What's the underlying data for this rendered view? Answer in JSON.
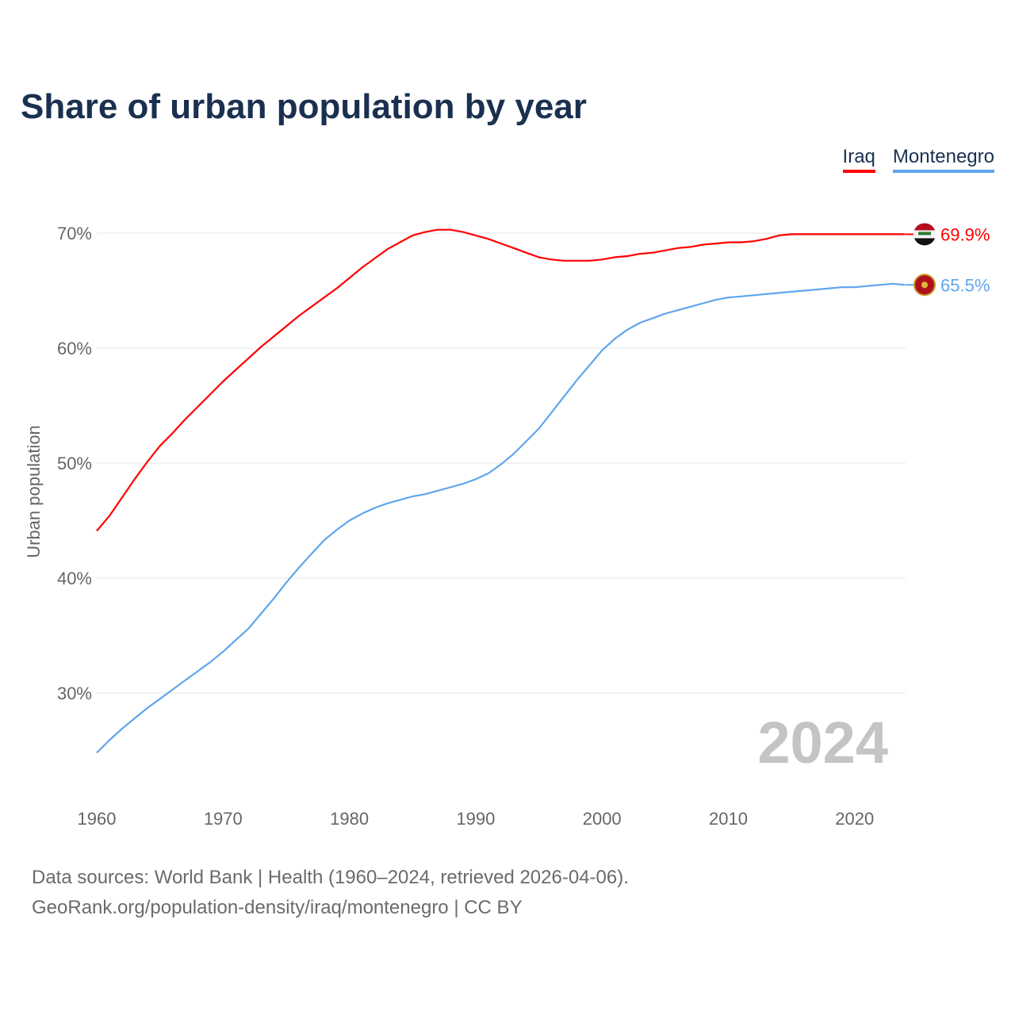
{
  "chart_data": {
    "type": "line",
    "title": "Share of urban population by year",
    "ylabel": "Urban population",
    "xlabel": "",
    "xlim": [
      1960,
      2024
    ],
    "ylim": [
      20,
      75
    ],
    "x_ticks": [
      1960,
      1970,
      1980,
      1990,
      2000,
      2010,
      2020
    ],
    "x_tick_labels": [
      "1960",
      "1970",
      "1980",
      "1990",
      "2000",
      "2010",
      "2020"
    ],
    "y_ticks": [
      30,
      40,
      50,
      60,
      70
    ],
    "y_tick_labels": [
      "30%",
      "40%",
      "50%",
      "60%",
      "70%"
    ],
    "grid": true,
    "legend_position": "top-right",
    "year_watermark": "2024",
    "x_start": 1960,
    "series": [
      {
        "name": "Iraq",
        "color": "#ff0000",
        "end_label": "69.9%",
        "flag": "iraq-flag",
        "values": [
          44.1,
          45.4,
          47.0,
          48.6,
          50.1,
          51.5,
          52.6,
          53.8,
          54.9,
          56.0,
          57.1,
          58.1,
          59.1,
          60.1,
          61.0,
          61.9,
          62.8,
          63.6,
          64.4,
          65.2,
          66.1,
          67.0,
          67.8,
          68.6,
          69.2,
          69.8,
          70.1,
          70.3,
          70.3,
          70.1,
          69.8,
          69.5,
          69.1,
          68.7,
          68.3,
          67.9,
          67.7,
          67.6,
          67.6,
          67.6,
          67.7,
          67.9,
          68.0,
          68.2,
          68.3,
          68.5,
          68.7,
          68.8,
          69.0,
          69.1,
          69.2,
          69.2,
          69.3,
          69.5,
          69.8,
          69.9,
          69.9,
          69.9,
          69.9,
          69.9,
          69.9,
          69.9,
          69.9,
          69.9,
          69.9
        ]
      },
      {
        "name": "Montenegro",
        "color": "#5ea6ec",
        "end_label": "65.5%",
        "flag": "montenegro-flag",
        "values": [
          24.8,
          25.9,
          26.9,
          27.8,
          28.7,
          29.5,
          30.3,
          31.1,
          31.9,
          32.7,
          33.6,
          34.6,
          35.6,
          36.9,
          38.2,
          39.6,
          40.9,
          42.1,
          43.3,
          44.2,
          45.0,
          45.6,
          46.1,
          46.5,
          46.8,
          47.1,
          47.3,
          47.6,
          47.9,
          48.2,
          48.6,
          49.1,
          49.9,
          50.8,
          51.9,
          53.0,
          54.4,
          55.8,
          57.2,
          58.5,
          59.8,
          60.8,
          61.6,
          62.2,
          62.6,
          63.0,
          63.3,
          63.6,
          63.9,
          64.2,
          64.4,
          64.5,
          64.6,
          64.7,
          64.8,
          64.9,
          65.0,
          65.1,
          65.2,
          65.3,
          65.3,
          65.4,
          65.5,
          65.6,
          65.5
        ]
      }
    ]
  },
  "footer": {
    "line1": "Data sources: World Bank | Health (1960–2024, retrieved 2026-04-06).",
    "line2": "GeoRank.org/population-density/iraq/montenegro | CC BY"
  }
}
